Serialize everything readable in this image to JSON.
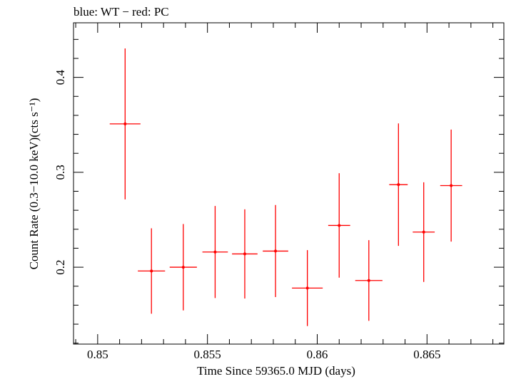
{
  "chart_data": {
    "type": "scatter",
    "title": "blue: WT − red: PC",
    "xlabel": "Time Since 59365.0 MJD (days)",
    "ylabel": "Count Rate (0.3−10.0 keV)(cts s⁻¹)",
    "xlim": [
      0.8489,
      0.8685
    ],
    "ylim": [
      0.119,
      0.4575
    ],
    "x_ticks": [
      "0.85",
      "0.855",
      "0.86",
      "0.865"
    ],
    "y_ticks": [
      "0.2",
      "0.3",
      "0.4"
    ],
    "grid": false,
    "series": [
      {
        "color": "#ff0000",
        "points": [
          {
            "x": 0.85125,
            "y": 0.351,
            "xerr": 0.0007,
            "yerr_low": 0.0795,
            "yerr_high": 0.0795
          },
          {
            "x": 0.85245,
            "y": 0.196,
            "xerr": 0.00062,
            "yerr_low": 0.045,
            "yerr_high": 0.045
          },
          {
            "x": 0.8539,
            "y": 0.2,
            "xerr": 0.00062,
            "yerr_low": 0.0455,
            "yerr_high": 0.0455
          },
          {
            "x": 0.85535,
            "y": 0.216,
            "xerr": 0.00058,
            "yerr_low": 0.0485,
            "yerr_high": 0.0485
          },
          {
            "x": 0.8567,
            "y": 0.214,
            "xerr": 0.00058,
            "yerr_low": 0.047,
            "yerr_high": 0.047
          },
          {
            "x": 0.8581,
            "y": 0.217,
            "xerr": 0.00058,
            "yerr_low": 0.0485,
            "yerr_high": 0.0485
          },
          {
            "x": 0.85955,
            "y": 0.178,
            "xerr": 0.0007,
            "yerr_low": 0.04,
            "yerr_high": 0.04
          },
          {
            "x": 0.861,
            "y": 0.244,
            "xerr": 0.0005,
            "yerr_low": 0.055,
            "yerr_high": 0.055
          },
          {
            "x": 0.86235,
            "y": 0.186,
            "xerr": 0.00062,
            "yerr_low": 0.0425,
            "yerr_high": 0.0425
          },
          {
            "x": 0.8637,
            "y": 0.287,
            "xerr": 0.00042,
            "yerr_low": 0.0645,
            "yerr_high": 0.0645
          },
          {
            "x": 0.86485,
            "y": 0.237,
            "xerr": 0.0005,
            "yerr_low": 0.0525,
            "yerr_high": 0.0525
          },
          {
            "x": 0.8661,
            "y": 0.286,
            "xerr": 0.0005,
            "yerr_low": 0.059,
            "yerr_high": 0.059
          }
        ]
      }
    ]
  }
}
